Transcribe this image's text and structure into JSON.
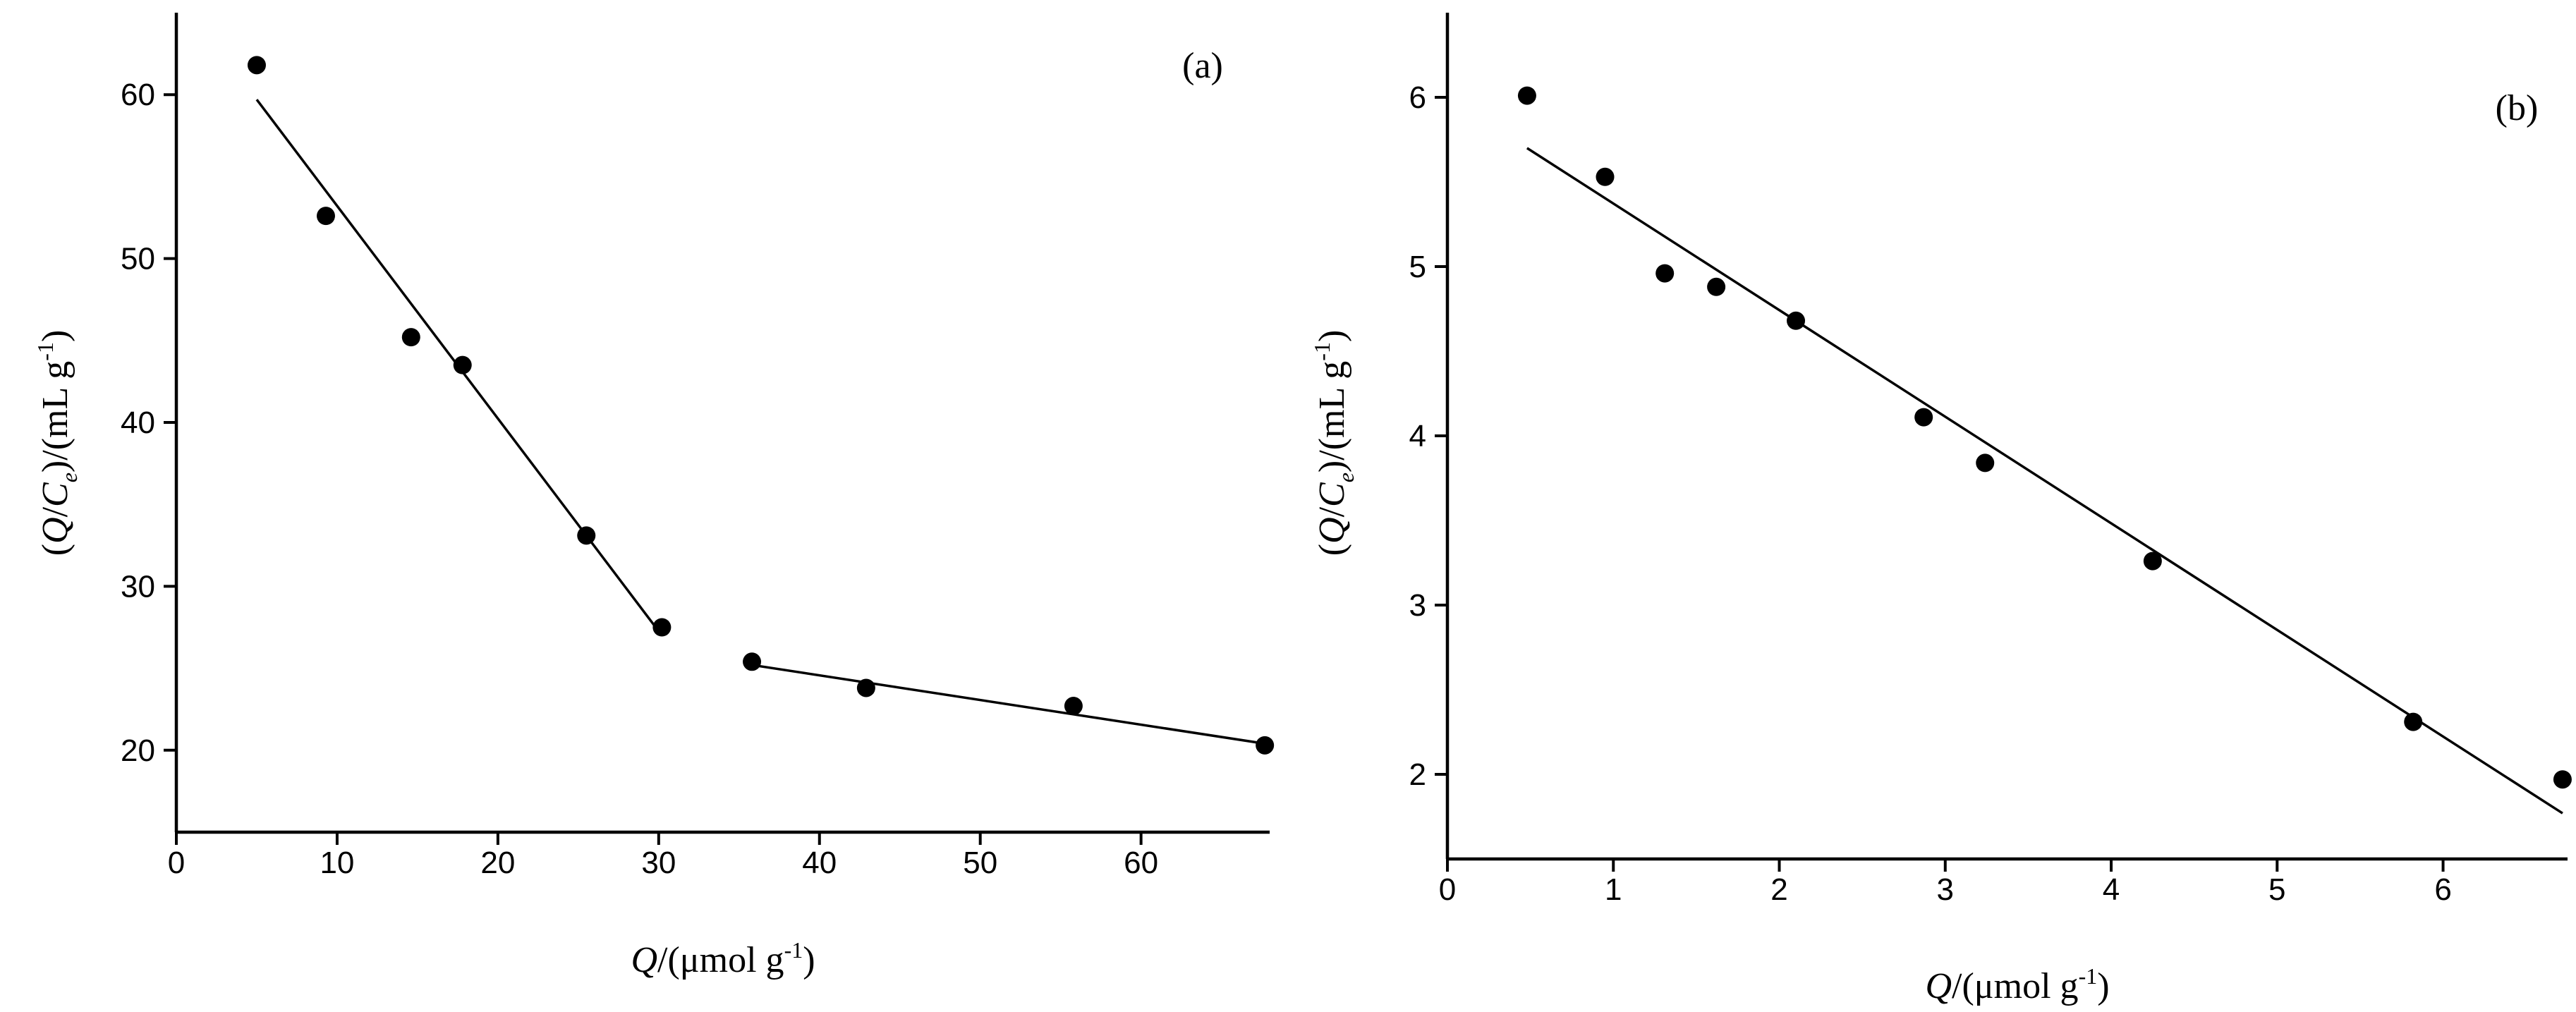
{
  "chart_data": [
    {
      "type": "scatter",
      "panel_label": "(a)",
      "xlabel": "Q/(μmol g-1)",
      "ylabel": "(Q/Ce)/(mL g-1)",
      "xlim": [
        0,
        68
      ],
      "ylim": [
        15,
        65
      ],
      "x_ticks": [
        0,
        10,
        20,
        30,
        40,
        50,
        60
      ],
      "y_ticks": [
        20,
        30,
        40,
        50,
        60
      ],
      "grid": false,
      "series": [
        {
          "name": "data",
          "x": [
            5.0,
            9.3,
            14.6,
            17.8,
            25.5,
            30.2,
            35.8,
            42.9,
            55.8,
            67.7
          ],
          "y": [
            61.8,
            52.6,
            45.2,
            43.5,
            33.1,
            27.5,
            25.4,
            23.8,
            22.7,
            20.3
          ]
        }
      ],
      "fit_lines": [
        {
          "x": [
            5.0,
            30.2
          ],
          "y": [
            59.7,
            27.0
          ]
        },
        {
          "x": [
            35.8,
            67.7
          ],
          "y": [
            25.2,
            20.4
          ]
        }
      ]
    },
    {
      "type": "scatter",
      "panel_label": "(b)",
      "xlabel": "Q/(μmol g-1)",
      "ylabel": "(Q/Ce)/(mL g-1)",
      "xlim": [
        0,
        6.75
      ],
      "ylim": [
        1.5,
        6.5
      ],
      "x_ticks": [
        0,
        1,
        2,
        3,
        4,
        5,
        6
      ],
      "y_ticks": [
        2,
        3,
        4,
        5,
        6
      ],
      "grid": false,
      "series": [
        {
          "name": "data",
          "x": [
            0.48,
            0.95,
            1.31,
            1.62,
            2.1,
            2.87,
            3.24,
            4.25,
            5.82,
            6.72
          ],
          "y": [
            6.01,
            5.53,
            4.96,
            4.88,
            4.68,
            4.11,
            3.84,
            3.26,
            2.31,
            1.97
          ]
        }
      ],
      "fit_lines": [
        {
          "x": [
            0.48,
            6.72
          ],
          "y": [
            5.7,
            1.77
          ]
        }
      ]
    }
  ]
}
